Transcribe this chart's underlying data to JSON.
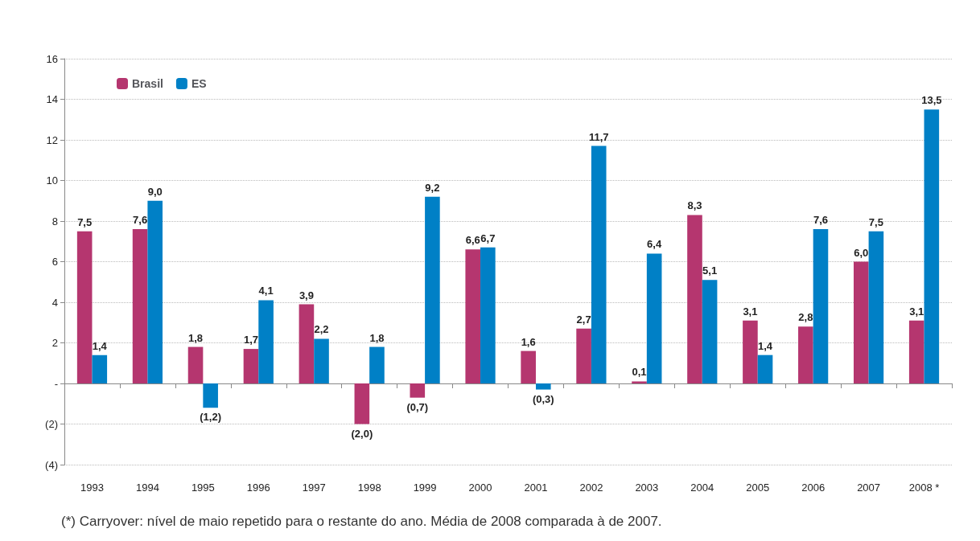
{
  "chart_data": {
    "type": "bar",
    "categories": [
      "1993",
      "1994",
      "1995",
      "1996",
      "1997",
      "1998",
      "1999",
      "2000",
      "2001",
      "2002",
      "2003",
      "2004",
      "2005",
      "2006",
      "2007",
      "2008 *"
    ],
    "series": [
      {
        "name": "Brasil",
        "color": "#b5366f",
        "values": [
          7.5,
          7.6,
          1.8,
          1.7,
          3.9,
          -2.0,
          -0.7,
          6.6,
          1.6,
          2.7,
          0.1,
          8.3,
          3.1,
          2.8,
          6.0,
          3.1
        ],
        "value_labels": [
          "7,5",
          "7,6",
          "1,8",
          "1,7",
          "3,9",
          "(2,0)",
          "(0,7)",
          "6,6",
          "1,6",
          "2,7",
          "0,1",
          "8,3",
          "3,1",
          "2,8",
          "6,0",
          "3,1"
        ]
      },
      {
        "name": "ES",
        "color": "#0080c6",
        "values": [
          1.4,
          9.0,
          -1.2,
          4.1,
          2.2,
          1.8,
          9.2,
          6.7,
          -0.3,
          11.7,
          6.4,
          5.1,
          1.4,
          7.6,
          7.5,
          13.5
        ],
        "value_labels": [
          "1,4",
          "9,0",
          "(1,2)",
          "4,1",
          "2,2",
          "1,8",
          "9,2",
          "6,7",
          "(0,3)",
          "11,7",
          "6,4",
          "5,1",
          "1,4",
          "7,6",
          "7,5",
          "13,5"
        ]
      }
    ],
    "ylim": [
      -4,
      16
    ],
    "yticks": [
      {
        "value": -4,
        "label": "(4)"
      },
      {
        "value": -2,
        "label": "(2)"
      },
      {
        "value": 0,
        "label": "-"
      },
      2,
      4,
      6,
      8,
      10,
      12,
      14,
      16
    ],
    "grid": "y",
    "legend": "top left",
    "annotations": [
      "(*) Carryover: nível de maio repetido para o restante do ano. Média de 2008 comparada à de 2007."
    ]
  }
}
